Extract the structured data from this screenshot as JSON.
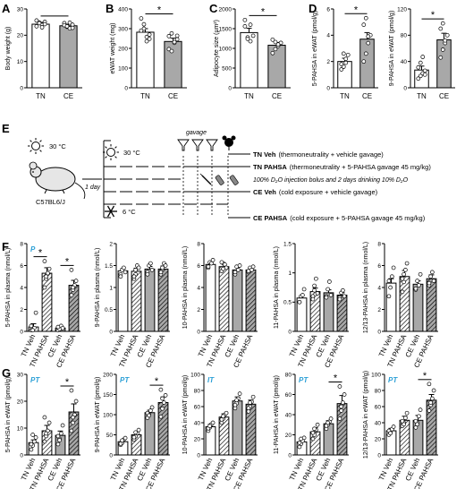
{
  "panels": {
    "A": "A",
    "B": "B",
    "C": "C",
    "D": "D",
    "E": "E",
    "F": "F",
    "G": "G"
  },
  "colors": {
    "white_bar": "#ffffff",
    "grey_bar": "#a8a8a8",
    "stat_label": "#2a9fd6"
  },
  "schematic": {
    "temp_warm": "30 °C",
    "temp_warm_right": "30 °C",
    "temp_cold": "6 °C",
    "strain": "C57BL6/J",
    "duration": "1 day",
    "gavage": "gavage",
    "groups": [
      {
        "name": "TN Veh",
        "desc": "(thermoneutrality + vehicle gavage)"
      },
      {
        "name": "TN PAHSA",
        "desc": "(thermoneutrality + 5-PAHSA gavage 45 mg/kg)"
      },
      {
        "name": "CE Veh",
        "desc": "(cold exposure + vehicle gavage)"
      },
      {
        "name": "CE PAHSA",
        "desc": "(cold exposure + 5-PAHSA gavage 45 mg/kg)"
      }
    ],
    "d2o_note": "100% D₂O injection bolus and 2 days drinking 10% D₂O",
    "icons": [
      "sun-icon",
      "sun-icon",
      "snowflake-icon",
      "mouse-icon",
      "funnel-icon",
      "syringe-icon",
      "bottle-icon"
    ]
  },
  "chart_data": [
    {
      "panel": "A",
      "type": "bar",
      "categories": [
        "TN",
        "CE"
      ],
      "values": [
        24.2,
        23.6
      ],
      "errors": [
        0.7,
        0.6
      ],
      "ylabel": "Body weight (g)",
      "ylim": [
        0,
        30
      ],
      "yticks": [
        0,
        10,
        20,
        30
      ],
      "sig": [
        {
          "from": 0,
          "to": 1,
          "label": ""
        }
      ],
      "points": [
        [
          25.6,
          24.8,
          23.9,
          25.1,
          23.4,
          24.6,
          23.0,
          24.2
        ],
        [
          24.6,
          23.2,
          22.6,
          24.0,
          23.8,
          23.4,
          24.8,
          22.8
        ]
      ]
    },
    {
      "panel": "B",
      "type": "bar",
      "categories": [
        "TN",
        "CE"
      ],
      "values": [
        282,
        235
      ],
      "errors": [
        18,
        17
      ],
      "ylabel": "eWAT weight (mg)",
      "ylim": [
        0,
        400
      ],
      "yticks": [
        0,
        100,
        200,
        300,
        400
      ],
      "sig": [
        {
          "from": 0,
          "to": 1,
          "label": "*"
        }
      ],
      "points": [
        [
          352,
          300,
          258,
          248,
          290,
          322,
          236,
          270
        ],
        [
          196,
          186,
          228,
          246,
          262,
          276,
          232,
          264
        ]
      ]
    },
    {
      "panel": "C",
      "type": "bar",
      "categories": [
        "TN",
        "CE"
      ],
      "values": [
        1400,
        1080
      ],
      "errors": [
        110,
        70
      ],
      "ylabel": "Adipocyte size (µm²)",
      "ylim": [
        0,
        2000
      ],
      "yticks": [
        0,
        500,
        1000,
        1500,
        2000
      ],
      "sig": [
        {
          "from": 0,
          "to": 1,
          "label": "*"
        }
      ],
      "points": [
        [
          1720,
          1280,
          1180,
          1320,
          1560,
          1240,
          1600
        ],
        [
          1220,
          980,
          1060,
          1140,
          880,
          1160,
          1100
        ]
      ]
    },
    {
      "panel": "D1",
      "type": "bar",
      "categories": [
        "TN",
        "CE"
      ],
      "values": [
        2.0,
        3.7
      ],
      "errors": [
        0.25,
        0.5
      ],
      "ylabel": "5-PAHSA in eWAT (pmol/g)",
      "ylim": [
        0,
        6
      ],
      "yticks": [
        0,
        2,
        4,
        6
      ],
      "sig": [
        {
          "from": 0,
          "to": 1,
          "label": "*"
        }
      ],
      "points": [
        [
          1.4,
          1.6,
          2.2,
          2.5,
          1.8,
          2.6,
          1.9
        ],
        [
          2.0,
          2.6,
          3.4,
          4.0,
          4.8,
          5.3,
          3.9
        ]
      ]
    },
    {
      "panel": "D2",
      "type": "bar",
      "categories": [
        "TN",
        "CE"
      ],
      "values": [
        27,
        73
      ],
      "errors": [
        6,
        10
      ],
      "ylabel": "9-PAHSA in eWAT (pmol/g)",
      "ylim": [
        0,
        120
      ],
      "yticks": [
        0,
        40,
        80,
        120
      ],
      "sig": [
        {
          "from": 0,
          "to": 1,
          "label": "*"
        }
      ],
      "points": [
        [
          14,
          18,
          22,
          26,
          31,
          38,
          47,
          20
        ],
        [
          46,
          58,
          68,
          80,
          90,
          98,
          72
        ]
      ]
    },
    {
      "panel": "F1",
      "type": "bar",
      "categories": [
        "TN Veh",
        "TN PAHSA",
        "CE Veh",
        "CE PAHSA"
      ],
      "values": [
        0.4,
        5.3,
        0.3,
        4.2
      ],
      "errors": [
        0.3,
        0.5,
        0.15,
        0.45
      ],
      "ylabel": "5-PAHSA in plasma (nmol/L)",
      "ylim": [
        0,
        8
      ],
      "yticks": [
        0,
        2,
        4,
        6,
        8
      ],
      "stat": "P",
      "sig": [
        {
          "from": 0,
          "to": 1,
          "label": "*"
        },
        {
          "from": 2,
          "to": 3,
          "label": "*"
        }
      ],
      "points": [
        [
          0.1,
          0.2,
          0.3,
          1.7,
          0.5,
          0.1
        ],
        [
          4.0,
          4.8,
          5.3,
          5.7,
          6.4,
          5.0
        ],
        [
          0.1,
          0.2,
          0.5,
          0.3,
          0.4
        ],
        [
          3.3,
          3.8,
          4.2,
          4.6,
          5.6,
          4.0
        ]
      ]
    },
    {
      "panel": "F2",
      "type": "bar",
      "categories": [
        "TN Veh",
        "TN PAHSA",
        "CE Veh",
        "CE PAHSA"
      ],
      "values": [
        1.38,
        1.37,
        1.42,
        1.42
      ],
      "errors": [
        0.05,
        0.07,
        0.06,
        0.07
      ],
      "ylabel": "9-PAHSA in plasma (nmol/L)",
      "ylim": [
        0,
        2
      ],
      "yticks": [
        0,
        0.5,
        1,
        1.5,
        2
      ],
      "sig": [],
      "points": [
        [
          1.3,
          1.4,
          1.45,
          1.35,
          1.25
        ],
        [
          1.2,
          1.3,
          1.5,
          1.45,
          1.25,
          1.4
        ],
        [
          1.35,
          1.5,
          1.55,
          1.4,
          1.3
        ],
        [
          1.3,
          1.45,
          1.55,
          1.5,
          1.35
        ]
      ]
    },
    {
      "panel": "F3",
      "type": "bar",
      "categories": [
        "TN Veh",
        "TN PAHSA",
        "CE Veh",
        "CE PAHSA"
      ],
      "values": [
        6.1,
        5.9,
        5.6,
        5.6
      ],
      "errors": [
        0.2,
        0.25,
        0.25,
        0.2
      ],
      "ylabel": "10-PAHSA in plasma (nmol/L)",
      "ylim": [
        0,
        8
      ],
      "yticks": [
        0,
        2,
        4,
        6,
        8
      ],
      "sig": [],
      "points": [
        [
          5.8,
          6.3,
          6.2,
          6.5,
          5.9
        ],
        [
          5.5,
          6.2,
          6.1,
          5.8,
          6.3,
          5.7
        ],
        [
          5.2,
          5.9,
          5.6,
          6.0,
          5.4
        ],
        [
          5.4,
          5.8,
          5.6,
          5.9,
          5.5
        ]
      ]
    },
    {
      "panel": "F4",
      "type": "bar",
      "categories": [
        "TN Veh",
        "TN PAHSA",
        "CE Veh",
        "CE PAHSA"
      ],
      "values": [
        0.57,
        0.68,
        0.66,
        0.62
      ],
      "errors": [
        0.04,
        0.06,
        0.05,
        0.04
      ],
      "ylabel": "11-PAHSA in plasma (nmol/L)",
      "ylim": [
        0,
        1.5
      ],
      "yticks": [
        0,
        0.5,
        1,
        1.5
      ],
      "sig": [],
      "points": [
        [
          0.5,
          0.6,
          0.62,
          0.72,
          0.5
        ],
        [
          0.6,
          0.78,
          0.9,
          0.65,
          0.55,
          0.7
        ],
        [
          0.6,
          0.72,
          0.85,
          0.62,
          0.58
        ],
        [
          0.58,
          0.66,
          0.7,
          0.6,
          0.55
        ]
      ]
    },
    {
      "panel": "F5",
      "type": "bar",
      "categories": [
        "TN Veh",
        "TN PAHSA",
        "CE Veh",
        "CE PAHSA"
      ],
      "values": [
        4.4,
        5.0,
        4.3,
        4.8
      ],
      "errors": [
        0.4,
        0.55,
        0.3,
        0.35
      ],
      "ylabel": "12/13-PAHSA in plasma (nmol/L)",
      "ylim": [
        0,
        8
      ],
      "yticks": [
        0,
        2,
        4,
        6,
        8
      ],
      "sig": [],
      "points": [
        [
          3.2,
          4.0,
          5.0,
          5.8,
          4.6
        ],
        [
          3.6,
          4.5,
          5.6,
          6.2,
          4.8,
          5.2
        ],
        [
          3.8,
          4.6,
          4.2,
          5.2,
          3.9
        ],
        [
          4.2,
          5.0,
          5.4,
          4.6,
          4.4
        ]
      ]
    },
    {
      "panel": "G1",
      "type": "bar",
      "categories": [
        "TN Veh",
        "TN PAHSA",
        "CE Veh",
        "CE PAHSA"
      ],
      "values": [
        4.6,
        9.0,
        7.3,
        16.0
      ],
      "errors": [
        1.0,
        2.0,
        1.6,
        3.0
      ],
      "ylabel": "5-PAHSA in eWAT (pmol/g)",
      "ylim": [
        0,
        30
      ],
      "yticks": [
        0,
        10,
        20,
        30
      ],
      "stat": "PT",
      "sig": [
        {
          "from": 2,
          "to": 3,
          "label": "*"
        }
      ],
      "points": [
        [
          2,
          3.5,
          5,
          6.5,
          4,
          7.5
        ],
        [
          5,
          7,
          9,
          12,
          14,
          8
        ],
        [
          4,
          6,
          8,
          11,
          7,
          5.5
        ],
        [
          9,
          12,
          15,
          20,
          24,
          14
        ]
      ]
    },
    {
      "panel": "G2",
      "type": "bar",
      "categories": [
        "TN Veh",
        "TN PAHSA",
        "CE Veh",
        "CE PAHSA"
      ],
      "values": [
        33,
        50,
        105,
        130
      ],
      "errors": [
        5,
        7,
        6,
        14
      ],
      "ylabel": "9-PAHSA in eWAT (pmol/g)",
      "ylim": [
        0,
        200
      ],
      "yticks": [
        0,
        50,
        100,
        150,
        200
      ],
      "stat": "PT",
      "sig": [
        {
          "from": 2,
          "to": 3,
          "label": "*"
        }
      ],
      "points": [
        [
          25,
          30,
          38,
          42,
          28,
          36
        ],
        [
          38,
          46,
          54,
          62,
          44,
          56
        ],
        [
          92,
          100,
          110,
          118,
          104,
          98
        ],
        [
          95,
          115,
          130,
          148,
          162,
          140
        ]
      ]
    },
    {
      "panel": "G3",
      "type": "bar",
      "categories": [
        "TN Veh",
        "TN PAHSA",
        "CE Veh",
        "CE PAHSA"
      ],
      "values": [
        35,
        47,
        67,
        63
      ],
      "errors": [
        3,
        4,
        5,
        5
      ],
      "ylabel": "10-PAHSA in eWAT (pmol/g)",
      "ylim": [
        0,
        100
      ],
      "yticks": [
        0,
        20,
        40,
        60,
        80,
        100
      ],
      "stat": "IT",
      "sig": [],
      "points": [
        [
          30,
          34,
          38,
          40,
          33,
          36
        ],
        [
          40,
          45,
          50,
          52,
          44,
          48
        ],
        [
          58,
          64,
          70,
          76,
          62,
          68
        ],
        [
          54,
          60,
          66,
          72,
          58,
          65
        ]
      ]
    },
    {
      "panel": "G4",
      "type": "bar",
      "categories": [
        "TN Veh",
        "TN PAHSA",
        "CE Veh",
        "CE PAHSA"
      ],
      "values": [
        13,
        23,
        31,
        51
      ],
      "errors": [
        2.5,
        4,
        3,
        8
      ],
      "ylabel": "11-PAHSA in eWAT (pmol/g)",
      "ylim": [
        0,
        80
      ],
      "yticks": [
        0,
        20,
        40,
        60,
        80
      ],
      "stat": "PT",
      "sig": [
        {
          "from": 2,
          "to": 3,
          "label": "*"
        }
      ],
      "points": [
        [
          8,
          11,
          14,
          17,
          12,
          16
        ],
        [
          16,
          20,
          25,
          30,
          22,
          26
        ],
        [
          26,
          30,
          33,
          36,
          29,
          32
        ],
        [
          36,
          44,
          52,
          60,
          68,
          48
        ]
      ]
    },
    {
      "panel": "G5",
      "type": "bar",
      "categories": [
        "TN Veh",
        "TN PAHSA",
        "CE Veh",
        "CE PAHSA"
      ],
      "values": [
        30,
        43,
        43,
        68
      ],
      "errors": [
        3,
        5,
        6,
        7
      ],
      "ylabel": "12/13-PAHSA in eWAT (pmol/g)",
      "ylim": [
        0,
        100
      ],
      "yticks": [
        0,
        20,
        40,
        60,
        80,
        100
      ],
      "stat": "PT",
      "sig": [
        {
          "from": 2,
          "to": 3,
          "label": "*"
        }
      ],
      "points": [
        [
          25,
          28,
          32,
          35,
          30,
          27
        ],
        [
          36,
          40,
          46,
          52,
          42,
          38
        ],
        [
          34,
          40,
          48,
          56,
          42,
          38
        ],
        [
          55,
          62,
          70,
          80,
          88,
          65
        ]
      ]
    }
  ]
}
